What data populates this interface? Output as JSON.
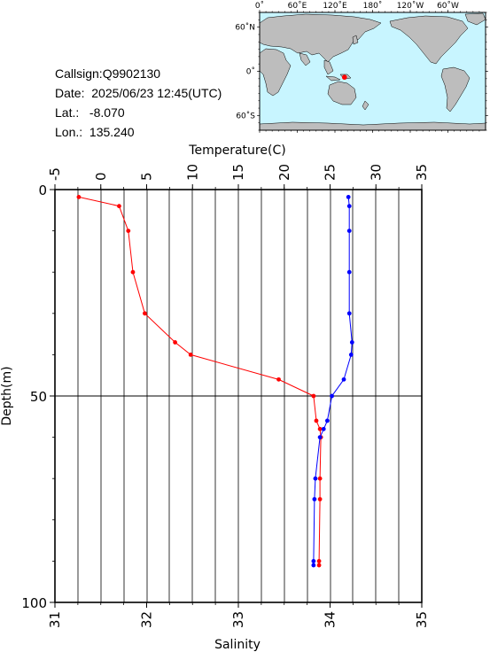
{
  "meta": {
    "callsign": "Callsign:Q9902130",
    "date": "Date:  2025/06/23 12:45(UTC)",
    "lat_label": "Lat.:",
    "lat_value": "-8.070",
    "lon_label": "Lon.:",
    "lon_value": "135.240"
  },
  "map": {
    "lon_ticks": [
      "0˚",
      "60˚E",
      "120˚E",
      "180˚",
      "120˚W",
      "60˚W"
    ],
    "lat_ticks": [
      "60˚N",
      "0˚",
      "60˚S"
    ],
    "ocean_color": "#c8f5ff",
    "land_color": "#bdbdbd",
    "marker_color": "#ff0000",
    "marker_lon": 135.24,
    "marker_lat": -8.07
  },
  "chart_data": {
    "type": "line",
    "temperature_axis": {
      "label": "Temperature(C)",
      "range": [
        -5,
        35
      ],
      "ticks": [
        "-5",
        "0",
        "5",
        "10",
        "15",
        "20",
        "25",
        "30",
        "35"
      ]
    },
    "salinity_axis": {
      "label": "Salinity",
      "range": [
        31,
        35
      ],
      "ticks": [
        "31",
        "32",
        "33",
        "34",
        "35"
      ]
    },
    "depth_axis": {
      "label": "Depth(m)",
      "range": [
        0,
        100
      ],
      "ticks": [
        "0",
        "50",
        "100"
      ],
      "inverted": true
    },
    "grid": true,
    "series": [
      {
        "color": "#ff0000",
        "x_axis": "temperature",
        "points": [
          {
            "value": -2.4,
            "depth": 1.8
          },
          {
            "value": 2.0,
            "depth": 4.0
          },
          {
            "value": 3.0,
            "depth": 10.0
          },
          {
            "value": 3.5,
            "depth": 20.0
          },
          {
            "value": 4.8,
            "depth": 30.0
          },
          {
            "value": 8.1,
            "depth": 37.0
          },
          {
            "value": 9.8,
            "depth": 40.0
          },
          {
            "value": 19.4,
            "depth": 46.0
          },
          {
            "value": 23.2,
            "depth": 50.0
          },
          {
            "value": 23.5,
            "depth": 56.0
          },
          {
            "value": 23.9,
            "depth": 58.0
          },
          {
            "value": 24.0,
            "depth": 60.0
          },
          {
            "value": 23.9,
            "depth": 70.0
          },
          {
            "value": 23.9,
            "depth": 75.0
          },
          {
            "value": 23.8,
            "depth": 90.0
          },
          {
            "value": 23.8,
            "depth": 91.0
          }
        ]
      },
      {
        "color": "#0000ff",
        "x_axis": "salinity",
        "points": [
          {
            "value": 34.2,
            "depth": 1.8
          },
          {
            "value": 34.21,
            "depth": 4.0
          },
          {
            "value": 34.21,
            "depth": 10.0
          },
          {
            "value": 34.21,
            "depth": 20.0
          },
          {
            "value": 34.21,
            "depth": 30.0
          },
          {
            "value": 34.24,
            "depth": 37.0
          },
          {
            "value": 34.23,
            "depth": 40.0
          },
          {
            "value": 34.15,
            "depth": 46.0
          },
          {
            "value": 34.02,
            "depth": 50.0
          },
          {
            "value": 33.97,
            "depth": 56.0
          },
          {
            "value": 33.93,
            "depth": 58.0
          },
          {
            "value": 33.89,
            "depth": 60.0
          },
          {
            "value": 33.84,
            "depth": 70.0
          },
          {
            "value": 33.83,
            "depth": 75.0
          },
          {
            "value": 33.82,
            "depth": 90.0
          },
          {
            "value": 33.82,
            "depth": 91.0
          }
        ]
      }
    ]
  }
}
